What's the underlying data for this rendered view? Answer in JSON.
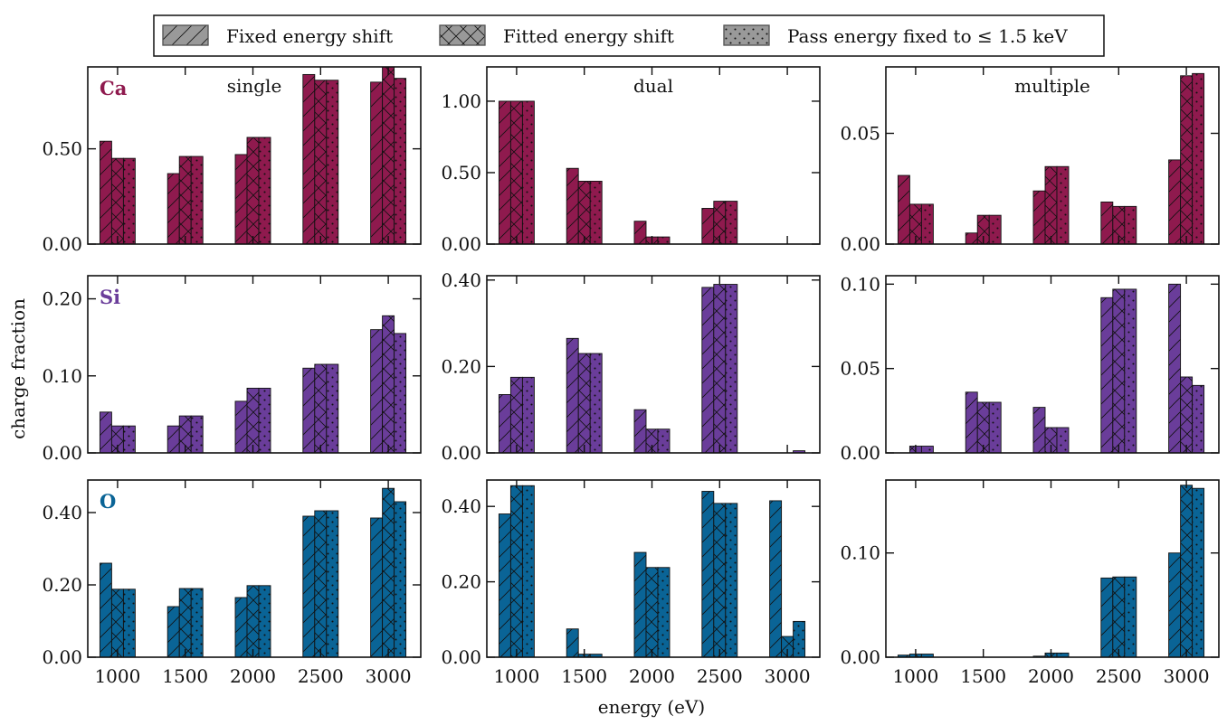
{
  "figure": {
    "ylabel": "charge fraction",
    "xlabel": "energy (eV)"
  },
  "legend": {
    "placement": "top-center",
    "entries": [
      {
        "label": "Fixed energy shift",
        "hatch": "slash"
      },
      {
        "label": "Fitted energy shift",
        "hatch": "cross"
      },
      {
        "label": "Pass energy fixed to ≤ 1.5 keV",
        "hatch": "dots"
      }
    ]
  },
  "rows": [
    {
      "element": "Ca",
      "color": "#8f1a4e"
    },
    {
      "element": "Si",
      "color": "#6a3d9a"
    },
    {
      "element": "O",
      "color": "#0a6496"
    }
  ],
  "columns": [
    {
      "title": "single"
    },
    {
      "title": "dual"
    },
    {
      "title": "multiple"
    }
  ],
  "chart_data": [
    {
      "type": "bar",
      "row": "Ca",
      "col": "single",
      "categories": [
        1000,
        1500,
        2000,
        2500,
        3000
      ],
      "ylim": [
        0,
        0.93
      ],
      "yticks": [
        0.0,
        0.5
      ],
      "ytick_labels": [
        "0.00",
        "0.50"
      ],
      "series": [
        {
          "name": "Fixed energy shift",
          "values": [
            0.54,
            0.37,
            0.47,
            0.89,
            0.85
          ]
        },
        {
          "name": "Fitted energy shift",
          "values": [
            0.45,
            0.46,
            0.56,
            0.86,
            0.93
          ]
        },
        {
          "name": "Pass energy fixed to ≤ 1.5 keV",
          "values": [
            0.45,
            0.46,
            0.56,
            0.86,
            0.87
          ]
        }
      ]
    },
    {
      "type": "bar",
      "row": "Ca",
      "col": "dual",
      "categories": [
        1000,
        1500,
        2000,
        2500,
        3000
      ],
      "ylim": [
        0,
        1.24
      ],
      "yticks": [
        0.0,
        0.5,
        1.0
      ],
      "ytick_labels": [
        "0.00",
        "0.50",
        "1.00"
      ],
      "series": [
        {
          "name": "Fixed energy shift",
          "values": [
            1.0,
            0.53,
            0.16,
            0.25,
            0.0
          ]
        },
        {
          "name": "Fitted energy shift",
          "values": [
            1.0,
            0.44,
            0.05,
            0.3,
            0.0
          ]
        },
        {
          "name": "Pass energy fixed to ≤ 1.5 keV",
          "values": [
            1.0,
            0.44,
            0.05,
            0.3,
            0.0
          ]
        }
      ]
    },
    {
      "type": "bar",
      "row": "Ca",
      "col": "multiple",
      "categories": [
        1000,
        1500,
        2000,
        2500,
        3000
      ],
      "ylim": [
        0,
        0.08
      ],
      "yticks": [
        0.0,
        0.05
      ],
      "ytick_labels": [
        "0.00",
        "0.05"
      ],
      "series": [
        {
          "name": "Fixed energy shift",
          "values": [
            0.031,
            0.005,
            0.024,
            0.019,
            0.038
          ]
        },
        {
          "name": "Fitted energy shift",
          "values": [
            0.018,
            0.013,
            0.035,
            0.017,
            0.076
          ]
        },
        {
          "name": "Pass energy fixed to ≤ 1.5 keV",
          "values": [
            0.018,
            0.013,
            0.035,
            0.017,
            0.077
          ]
        }
      ]
    },
    {
      "type": "bar",
      "row": "Si",
      "col": "single",
      "categories": [
        1000,
        1500,
        2000,
        2500,
        3000
      ],
      "ylim": [
        0,
        0.23
      ],
      "yticks": [
        0.0,
        0.1,
        0.2
      ],
      "ytick_labels": [
        "0.00",
        "0.10",
        "0.20"
      ],
      "series": [
        {
          "name": "Fixed energy shift",
          "values": [
            0.053,
            0.035,
            0.067,
            0.11,
            0.16
          ]
        },
        {
          "name": "Fitted energy shift",
          "values": [
            0.035,
            0.048,
            0.084,
            0.115,
            0.178
          ]
        },
        {
          "name": "Pass energy fixed to ≤ 1.5 keV",
          "values": [
            0.035,
            0.048,
            0.084,
            0.115,
            0.155
          ]
        }
      ]
    },
    {
      "type": "bar",
      "row": "Si",
      "col": "dual",
      "categories": [
        1000,
        1500,
        2000,
        2500,
        3000
      ],
      "ylim": [
        0,
        0.41
      ],
      "yticks": [
        0.0,
        0.2,
        0.4
      ],
      "ytick_labels": [
        "0.00",
        "0.20",
        "0.40"
      ],
      "series": [
        {
          "name": "Fixed energy shift",
          "values": [
            0.135,
            0.265,
            0.1,
            0.383,
            0.0
          ]
        },
        {
          "name": "Fitted energy shift",
          "values": [
            0.175,
            0.23,
            0.055,
            0.39,
            0.0
          ]
        },
        {
          "name": "Pass energy fixed to ≤ 1.5 keV",
          "values": [
            0.175,
            0.23,
            0.055,
            0.39,
            0.005
          ]
        }
      ]
    },
    {
      "type": "bar",
      "row": "Si",
      "col": "multiple",
      "categories": [
        1000,
        1500,
        2000,
        2500,
        3000
      ],
      "ylim": [
        0,
        0.105
      ],
      "yticks": [
        0.0,
        0.05,
        0.1
      ],
      "ytick_labels": [
        "0.00",
        "0.05",
        "0.10"
      ],
      "series": [
        {
          "name": "Fixed energy shift",
          "values": [
            0.0,
            0.036,
            0.027,
            0.092,
            0.1
          ]
        },
        {
          "name": "Fitted energy shift",
          "values": [
            0.004,
            0.03,
            0.015,
            0.097,
            0.045
          ]
        },
        {
          "name": "Pass energy fixed to ≤ 1.5 keV",
          "values": [
            0.004,
            0.03,
            0.015,
            0.097,
            0.04
          ]
        }
      ]
    },
    {
      "type": "bar",
      "row": "O",
      "col": "single",
      "categories": [
        1000,
        1500,
        2000,
        2500,
        3000
      ],
      "ylim": [
        0,
        0.49
      ],
      "yticks": [
        0.0,
        0.2,
        0.4
      ],
      "ytick_labels": [
        "0.00",
        "0.20",
        "0.40"
      ],
      "series": [
        {
          "name": "Fixed energy shift",
          "values": [
            0.26,
            0.14,
            0.165,
            0.39,
            0.385
          ]
        },
        {
          "name": "Fitted energy shift",
          "values": [
            0.188,
            0.19,
            0.198,
            0.405,
            0.467
          ]
        },
        {
          "name": "Pass energy fixed to ≤ 1.5 keV",
          "values": [
            0.188,
            0.19,
            0.198,
            0.405,
            0.43
          ]
        }
      ]
    },
    {
      "type": "bar",
      "row": "O",
      "col": "dual",
      "categories": [
        1000,
        1500,
        2000,
        2500,
        3000
      ],
      "ylim": [
        0,
        0.47
      ],
      "yticks": [
        0.0,
        0.2,
        0.4
      ],
      "ytick_labels": [
        "0.00",
        "0.20",
        "0.40"
      ],
      "series": [
        {
          "name": "Fixed energy shift",
          "values": [
            0.38,
            0.075,
            0.278,
            0.44,
            0.415
          ]
        },
        {
          "name": "Fitted energy shift",
          "values": [
            0.455,
            0.008,
            0.238,
            0.408,
            0.055
          ]
        },
        {
          "name": "Pass energy fixed to ≤ 1.5 keV",
          "values": [
            0.455,
            0.008,
            0.238,
            0.408,
            0.095
          ]
        }
      ]
    },
    {
      "type": "bar",
      "row": "O",
      "col": "multiple",
      "categories": [
        1000,
        1500,
        2000,
        2500,
        3000
      ],
      "ylim": [
        0,
        0.17
      ],
      "yticks": [
        0.0,
        0.1
      ],
      "ytick_labels": [
        "0.00",
        "0.10"
      ],
      "series": [
        {
          "name": "Fixed energy shift",
          "values": [
            0.002,
            0.0,
            0.001,
            0.076,
            0.1
          ]
        },
        {
          "name": "Fitted energy shift",
          "values": [
            0.003,
            0.0,
            0.004,
            0.077,
            0.165
          ]
        },
        {
          "name": "Pass energy fixed to ≤ 1.5 keV",
          "values": [
            0.003,
            0.0,
            0.004,
            0.077,
            0.162
          ]
        }
      ]
    }
  ]
}
